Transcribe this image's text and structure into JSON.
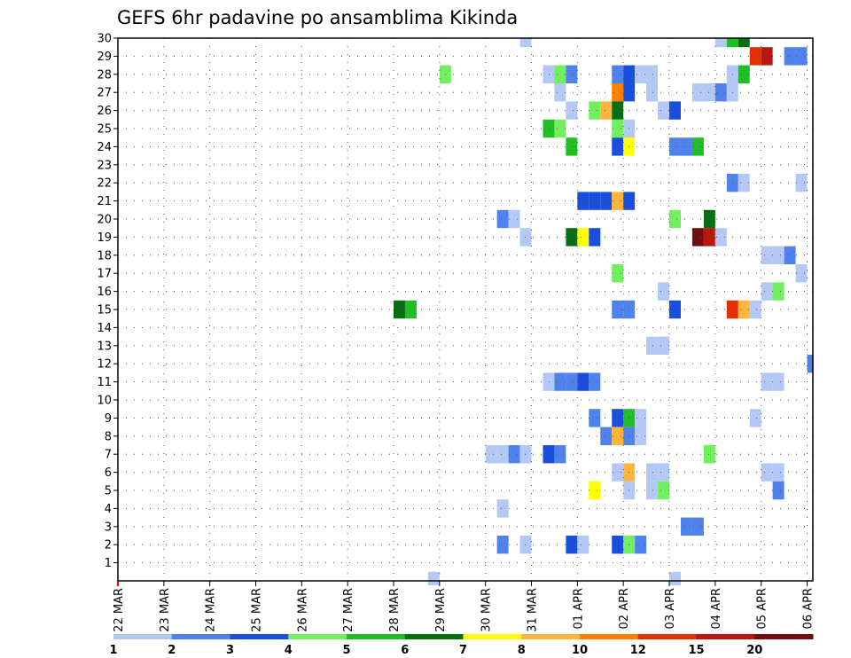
{
  "chart_data": {
    "type": "heatmap",
    "title": "GEFS 6hr padavine po ansamblima Kikinda",
    "y_range": [
      0,
      30
    ],
    "y_ticks": [
      1,
      2,
      3,
      4,
      5,
      6,
      7,
      8,
      9,
      10,
      11,
      12,
      13,
      14,
      15,
      16,
      17,
      18,
      19,
      20,
      21,
      22,
      23,
      24,
      25,
      26,
      27,
      28,
      29,
      30
    ],
    "x_range": [
      0,
      60.5
    ],
    "x_ticks": [
      {
        "x": 0,
        "label": "22 MAR"
      },
      {
        "x": 4,
        "label": "23 MAR"
      },
      {
        "x": 8,
        "label": "24 MAR"
      },
      {
        "x": 12,
        "label": "25 MAR"
      },
      {
        "x": 16,
        "label": "26 MAR"
      },
      {
        "x": 20,
        "label": "27 MAR"
      },
      {
        "x": 24,
        "label": "28 MAR"
      },
      {
        "x": 28,
        "label": "29 MAR"
      },
      {
        "x": 32,
        "label": "30 MAR"
      },
      {
        "x": 36,
        "label": "31 MAR"
      },
      {
        "x": 40,
        "label": "01 APR"
      },
      {
        "x": 44,
        "label": "02 APR"
      },
      {
        "x": 48,
        "label": "03 APR"
      },
      {
        "x": 52,
        "label": "04 APR"
      },
      {
        "x": 56,
        "label": "05 APR"
      },
      {
        "x": 60,
        "label": "06 APR"
      }
    ],
    "grid": true,
    "legend_position": "bottom",
    "legend": {
      "labels": [
        "1",
        "2",
        "3",
        "4",
        "5",
        "6",
        "7",
        "8",
        "10",
        "12",
        "15",
        "20"
      ],
      "colors": [
        "#b4c8f5",
        "#5082ee",
        "#1a4fdc",
        "#72ef5e",
        "#1ebe24",
        "#096e12",
        "#ffff00",
        "#ffb43c",
        "#ff7f00",
        "#e42f00",
        "#b81810",
        "#6e0e0e"
      ]
    },
    "cells": [
      {
        "y": 30,
        "x": 35.5,
        "v": 0
      },
      {
        "y": 30,
        "x": 52.5,
        "v": 0
      },
      {
        "y": 30,
        "x": 53.5,
        "v": 4
      },
      {
        "y": 30,
        "x": 54.5,
        "v": 5
      },
      {
        "y": 29,
        "x": 55.5,
        "v": 9
      },
      {
        "y": 29,
        "x": 56.5,
        "v": 10
      },
      {
        "y": 29,
        "x": 58.5,
        "v": 1
      },
      {
        "y": 29,
        "x": 59.5,
        "v": 1
      },
      {
        "y": 28,
        "x": 28.5,
        "v": 3
      },
      {
        "y": 28,
        "x": 37.5,
        "v": 0
      },
      {
        "y": 28,
        "x": 38.5,
        "v": 3
      },
      {
        "y": 28,
        "x": 39.5,
        "v": 1
      },
      {
        "y": 28,
        "x": 43.5,
        "v": 1
      },
      {
        "y": 28,
        "x": 44.5,
        "v": 2
      },
      {
        "y": 28,
        "x": 45.5,
        "v": 0
      },
      {
        "y": 28,
        "x": 46.5,
        "v": 0
      },
      {
        "y": 28,
        "x": 53.5,
        "v": 0
      },
      {
        "y": 28,
        "x": 54.5,
        "v": 4
      },
      {
        "y": 27,
        "x": 38.5,
        "v": 0
      },
      {
        "y": 27,
        "x": 43.5,
        "v": 8
      },
      {
        "y": 27,
        "x": 44.5,
        "v": 2
      },
      {
        "y": 27,
        "x": 46.5,
        "v": 0
      },
      {
        "y": 27,
        "x": 50.5,
        "v": 0
      },
      {
        "y": 27,
        "x": 51.5,
        "v": 0
      },
      {
        "y": 27,
        "x": 52.5,
        "v": 1
      },
      {
        "y": 27,
        "x": 53.5,
        "v": 0
      },
      {
        "y": 26,
        "x": 39.5,
        "v": 0
      },
      {
        "y": 26,
        "x": 41.5,
        "v": 3
      },
      {
        "y": 26,
        "x": 42.5,
        "v": 7
      },
      {
        "y": 26,
        "x": 43.5,
        "v": 5
      },
      {
        "y": 26,
        "x": 47.5,
        "v": 0
      },
      {
        "y": 26,
        "x": 48.5,
        "v": 2
      },
      {
        "y": 25,
        "x": 37.5,
        "v": 4
      },
      {
        "y": 25,
        "x": 38.5,
        "v": 3
      },
      {
        "y": 25,
        "x": 43.5,
        "v": 3
      },
      {
        "y": 25,
        "x": 44.5,
        "v": 0
      },
      {
        "y": 24,
        "x": 39.5,
        "v": 4
      },
      {
        "y": 24,
        "x": 43.5,
        "v": 2
      },
      {
        "y": 24,
        "x": 44.5,
        "v": 6
      },
      {
        "y": 24,
        "x": 48.5,
        "v": 1
      },
      {
        "y": 24,
        "x": 49.5,
        "v": 1
      },
      {
        "y": 24,
        "x": 50.5,
        "v": 4
      },
      {
        "y": 22,
        "x": 53.5,
        "v": 1
      },
      {
        "y": 22,
        "x": 54.5,
        "v": 0
      },
      {
        "y": 22,
        "x": 59.5,
        "v": 0
      },
      {
        "y": 21,
        "x": 40.5,
        "v": 2
      },
      {
        "y": 21,
        "x": 41.5,
        "v": 2
      },
      {
        "y": 21,
        "x": 42.5,
        "v": 2
      },
      {
        "y": 21,
        "x": 43.5,
        "v": 7
      },
      {
        "y": 21,
        "x": 44.5,
        "v": 2
      },
      {
        "y": 20,
        "x": 33.5,
        "v": 1
      },
      {
        "y": 20,
        "x": 34.5,
        "v": 0
      },
      {
        "y": 20,
        "x": 48.5,
        "v": 3
      },
      {
        "y": 20,
        "x": 51.5,
        "v": 5
      },
      {
        "y": 19,
        "x": 35.5,
        "v": 0
      },
      {
        "y": 19,
        "x": 39.5,
        "v": 5
      },
      {
        "y": 19,
        "x": 40.5,
        "v": 6
      },
      {
        "y": 19,
        "x": 41.5,
        "v": 2
      },
      {
        "y": 19,
        "x": 50.5,
        "v": 11
      },
      {
        "y": 19,
        "x": 51.5,
        "v": 10
      },
      {
        "y": 19,
        "x": 52.5,
        "v": 0
      },
      {
        "y": 18,
        "x": 56.5,
        "v": 0
      },
      {
        "y": 18,
        "x": 57.5,
        "v": 0
      },
      {
        "y": 18,
        "x": 58.5,
        "v": 1
      },
      {
        "y": 17,
        "x": 43.5,
        "v": 3
      },
      {
        "y": 17,
        "x": 59.5,
        "v": 0
      },
      {
        "y": 16,
        "x": 47.5,
        "v": 0
      },
      {
        "y": 16,
        "x": 56.5,
        "v": 0
      },
      {
        "y": 16,
        "x": 57.5,
        "v": 3
      },
      {
        "y": 15,
        "x": 24.5,
        "v": 5
      },
      {
        "y": 15,
        "x": 25.5,
        "v": 4
      },
      {
        "y": 15,
        "x": 43.5,
        "v": 1
      },
      {
        "y": 15,
        "x": 44.5,
        "v": 1
      },
      {
        "y": 15,
        "x": 48.5,
        "v": 2
      },
      {
        "y": 15,
        "x": 53.5,
        "v": 9
      },
      {
        "y": 15,
        "x": 54.5,
        "v": 7
      },
      {
        "y": 15,
        "x": 55.5,
        "v": 0
      },
      {
        "y": 13,
        "x": 46.5,
        "v": 0
      },
      {
        "y": 13,
        "x": 47.5,
        "v": 0
      },
      {
        "y": 12,
        "x": 60.5,
        "v": 1
      },
      {
        "y": 11,
        "x": 37.5,
        "v": 0
      },
      {
        "y": 11,
        "x": 38.5,
        "v": 1
      },
      {
        "y": 11,
        "x": 39.5,
        "v": 1
      },
      {
        "y": 11,
        "x": 40.5,
        "v": 2
      },
      {
        "y": 11,
        "x": 41.5,
        "v": 1
      },
      {
        "y": 11,
        "x": 56.5,
        "v": 0
      },
      {
        "y": 11,
        "x": 57.5,
        "v": 0
      },
      {
        "y": 9,
        "x": 41.5,
        "v": 1
      },
      {
        "y": 9,
        "x": 43.5,
        "v": 2
      },
      {
        "y": 9,
        "x": 44.5,
        "v": 4
      },
      {
        "y": 9,
        "x": 45.5,
        "v": 0
      },
      {
        "y": 9,
        "x": 55.5,
        "v": 0
      },
      {
        "y": 8,
        "x": 42.5,
        "v": 1
      },
      {
        "y": 8,
        "x": 43.5,
        "v": 7
      },
      {
        "y": 8,
        "x": 44.5,
        "v": 1
      },
      {
        "y": 8,
        "x": 45.5,
        "v": 0
      },
      {
        "y": 7,
        "x": 32.5,
        "v": 0
      },
      {
        "y": 7,
        "x": 33.5,
        "v": 0
      },
      {
        "y": 7,
        "x": 34.5,
        "v": 1
      },
      {
        "y": 7,
        "x": 35.5,
        "v": 0
      },
      {
        "y": 7,
        "x": 37.5,
        "v": 2
      },
      {
        "y": 7,
        "x": 38.5,
        "v": 1
      },
      {
        "y": 7,
        "x": 51.5,
        "v": 3
      },
      {
        "y": 6,
        "x": 43.5,
        "v": 0
      },
      {
        "y": 6,
        "x": 44.5,
        "v": 7
      },
      {
        "y": 6,
        "x": 46.5,
        "v": 0
      },
      {
        "y": 6,
        "x": 47.5,
        "v": 0
      },
      {
        "y": 6,
        "x": 56.5,
        "v": 0
      },
      {
        "y": 6,
        "x": 57.5,
        "v": 0
      },
      {
        "y": 5,
        "x": 41.5,
        "v": 6
      },
      {
        "y": 5,
        "x": 44.5,
        "v": 0
      },
      {
        "y": 5,
        "x": 46.5,
        "v": 0
      },
      {
        "y": 5,
        "x": 47.5,
        "v": 3
      },
      {
        "y": 5,
        "x": 57.5,
        "v": 1
      },
      {
        "y": 4,
        "x": 33.5,
        "v": 0
      },
      {
        "y": 3,
        "x": 49.5,
        "v": 1
      },
      {
        "y": 3,
        "x": 50.5,
        "v": 1
      },
      {
        "y": 2,
        "x": 33.5,
        "v": 1
      },
      {
        "y": 2,
        "x": 35.5,
        "v": 0
      },
      {
        "y": 2,
        "x": 39.5,
        "v": 2
      },
      {
        "y": 2,
        "x": 40.5,
        "v": 0
      },
      {
        "y": 2,
        "x": 43.5,
        "v": 2
      },
      {
        "y": 2,
        "x": 44.5,
        "v": 3
      },
      {
        "y": 2,
        "x": 45.5,
        "v": 1
      },
      {
        "y": 0,
        "x": 27.5,
        "v": 0
      },
      {
        "y": 0,
        "x": 48.5,
        "v": 0
      }
    ]
  }
}
